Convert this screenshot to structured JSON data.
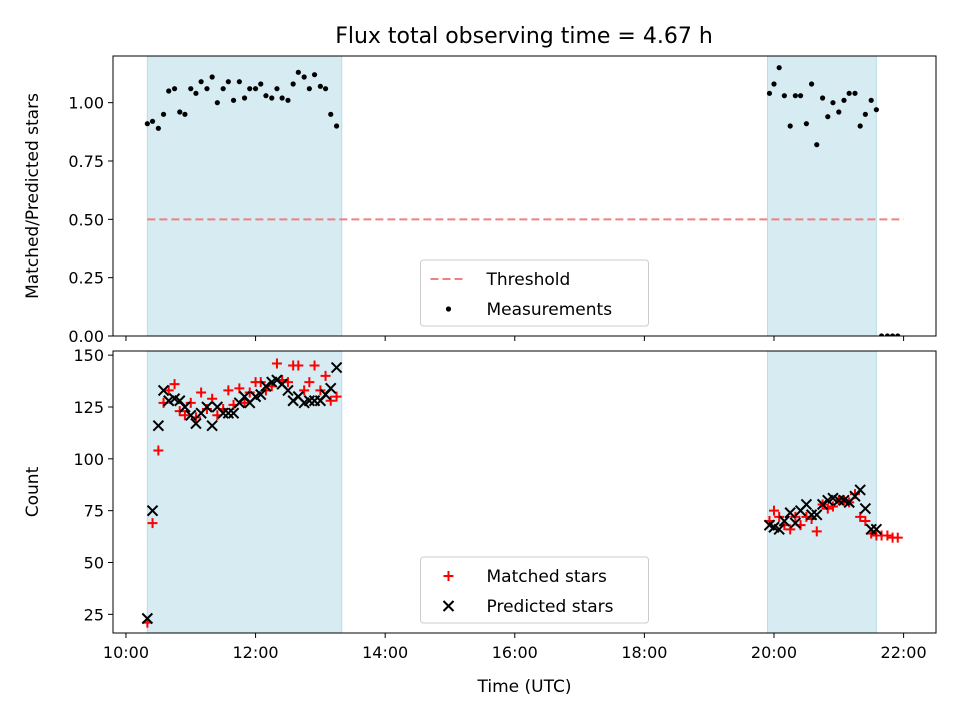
{
  "title": "Flux total observing time = 4.67 h",
  "chart_data": [
    {
      "type": "scatter",
      "panel": "top",
      "ylabel": "Matched/Predicted stars",
      "ylim": [
        0,
        1.2
      ],
      "yticks": [
        "0.00",
        "0.25",
        "0.50",
        "0.75",
        "1.00"
      ],
      "xlim_hours": [
        9.8,
        22.5
      ],
      "shaded_intervals_hours": [
        [
          10.33,
          13.33
        ],
        [
          19.9,
          21.58
        ]
      ],
      "threshold": {
        "name": "Threshold",
        "value": 0.5,
        "x_range_hours": [
          10.33,
          22.0
        ],
        "color": "#f08080"
      },
      "legend": {
        "placement": "lower center",
        "entries": [
          "Threshold",
          "Measurements"
        ]
      },
      "series": [
        {
          "name": "Measurements",
          "color": "#000000",
          "x_hours": [
            10.33,
            10.41,
            10.5,
            10.58,
            10.66,
            10.75,
            10.83,
            10.91,
            11.0,
            11.08,
            11.16,
            11.25,
            11.33,
            11.41,
            11.5,
            11.58,
            11.66,
            11.75,
            11.83,
            11.91,
            12.0,
            12.08,
            12.16,
            12.25,
            12.33,
            12.41,
            12.5,
            12.58,
            12.66,
            12.75,
            12.83,
            12.91,
            13.0,
            13.08,
            13.16,
            13.25,
            19.93,
            20.0,
            20.08,
            20.16,
            20.25,
            20.33,
            20.41,
            20.5,
            20.58,
            20.66,
            20.75,
            20.83,
            20.91,
            21.0,
            21.08,
            21.16,
            21.25,
            21.33,
            21.41,
            21.5,
            21.58,
            21.66,
            21.75,
            21.83,
            21.91
          ],
          "y": [
            0.91,
            0.92,
            0.89,
            0.95,
            1.05,
            1.06,
            0.96,
            0.95,
            1.06,
            1.04,
            1.09,
            1.06,
            1.11,
            1.0,
            1.06,
            1.09,
            1.01,
            1.09,
            1.02,
            1.06,
            1.06,
            1.08,
            1.03,
            1.02,
            1.06,
            1.02,
            1.01,
            1.08,
            1.13,
            1.11,
            1.06,
            1.12,
            1.07,
            1.06,
            0.95,
            0.9,
            1.04,
            1.08,
            1.15,
            1.03,
            0.9,
            1.03,
            1.03,
            0.91,
            1.08,
            0.82,
            1.02,
            0.94,
            1.0,
            0.96,
            1.01,
            1.04,
            1.04,
            0.9,
            0.95,
            1.01,
            0.97,
            0.0,
            0.0,
            0.0,
            0.0
          ]
        }
      ]
    },
    {
      "type": "scatter",
      "panel": "bottom",
      "xlabel": "Time (UTC)",
      "ylabel": "Count",
      "ylim": [
        16,
        152
      ],
      "yticks": [
        "25",
        "50",
        "75",
        "100",
        "125",
        "150"
      ],
      "xticks": [
        "10:00",
        "12:00",
        "14:00",
        "16:00",
        "18:00",
        "20:00",
        "22:00"
      ],
      "xlim_hours": [
        9.8,
        22.5
      ],
      "shaded_intervals_hours": [
        [
          10.33,
          13.33
        ],
        [
          19.9,
          21.58
        ]
      ],
      "legend": {
        "placement": "lower center",
        "entries": [
          "Matched stars",
          "Predicted stars"
        ]
      },
      "series": [
        {
          "name": "Matched stars",
          "marker": "+",
          "color": "#ff0000",
          "x_hours": [
            10.33,
            10.41,
            10.5,
            10.58,
            10.66,
            10.75,
            10.83,
            10.91,
            11.0,
            11.08,
            11.16,
            11.25,
            11.33,
            11.41,
            11.5,
            11.58,
            11.66,
            11.75,
            11.83,
            11.91,
            12.0,
            12.08,
            12.16,
            12.25,
            12.33,
            12.41,
            12.5,
            12.58,
            12.66,
            12.75,
            12.83,
            12.91,
            13.0,
            13.08,
            13.16,
            13.25,
            19.93,
            20.0,
            20.08,
            20.16,
            20.25,
            20.33,
            20.41,
            20.5,
            20.58,
            20.66,
            20.75,
            20.83,
            20.91,
            21.0,
            21.08,
            21.16,
            21.25,
            21.33,
            21.41,
            21.5,
            21.58,
            21.66,
            21.75,
            21.83,
            21.91
          ],
          "y": [
            21,
            69,
            104,
            127,
            133,
            136,
            123,
            121,
            127,
            120,
            132,
            124,
            129,
            121,
            124,
            133,
            126,
            134,
            127,
            132,
            137,
            137,
            133,
            135,
            146,
            138,
            137,
            145,
            145,
            133,
            137,
            145,
            133,
            140,
            128,
            130,
            70,
            75,
            72,
            68,
            66,
            72,
            68,
            72,
            71,
            65,
            78,
            76,
            77,
            80,
            80,
            79,
            83,
            72,
            70,
            64,
            63,
            63,
            63,
            62,
            62
          ]
        },
        {
          "name": "Predicted stars",
          "marker": "x",
          "color": "#000000",
          "x_hours": [
            10.33,
            10.41,
            10.5,
            10.58,
            10.66,
            10.75,
            10.83,
            10.91,
            11.0,
            11.08,
            11.16,
            11.25,
            11.33,
            11.41,
            11.5,
            11.58,
            11.66,
            11.75,
            11.83,
            11.91,
            12.0,
            12.08,
            12.16,
            12.25,
            12.33,
            12.41,
            12.5,
            12.58,
            12.66,
            12.75,
            12.83,
            12.91,
            13.0,
            13.08,
            13.16,
            13.25,
            19.93,
            20.0,
            20.08,
            20.16,
            20.25,
            20.33,
            20.41,
            20.5,
            20.58,
            20.66,
            20.75,
            20.83,
            20.91,
            21.0,
            21.08,
            21.16,
            21.25,
            21.33,
            21.41,
            21.5,
            21.58
          ],
          "y": [
            23,
            75,
            116,
            133,
            128,
            129,
            128,
            125,
            121,
            117,
            122,
            125,
            116,
            125,
            122,
            122,
            122,
            127,
            130,
            127,
            130,
            131,
            135,
            137,
            138,
            136,
            133,
            128,
            130,
            127,
            128,
            128,
            128,
            131,
            134,
            144,
            68,
            67,
            66,
            70,
            74,
            69,
            75,
            78,
            73,
            73,
            78,
            80,
            81,
            80,
            80,
            79,
            82,
            85,
            76,
            66,
            66
          ]
        }
      ]
    }
  ]
}
